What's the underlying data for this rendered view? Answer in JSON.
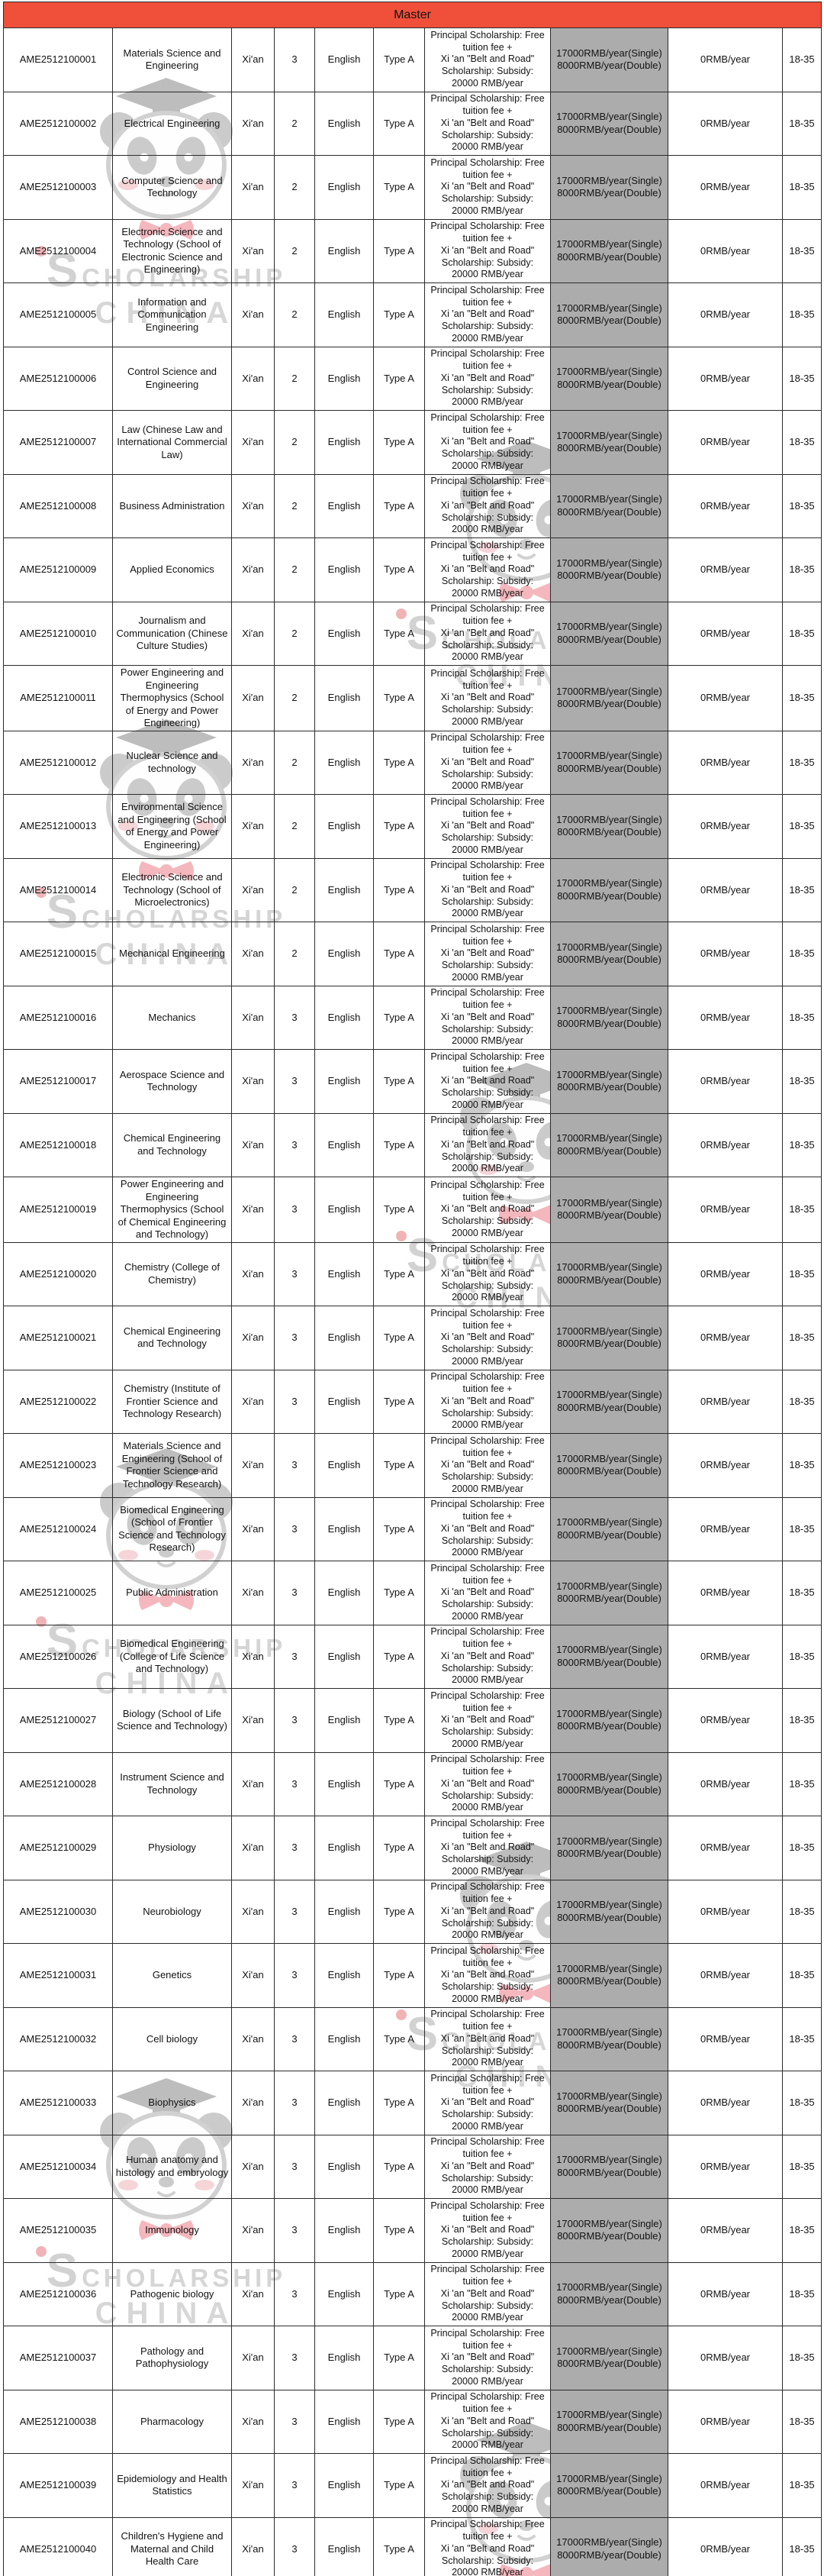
{
  "section": {
    "title": "Master"
  },
  "colors": {
    "header_bg": "#f04f3a",
    "fee_col_bg": "#acacac"
  },
  "watermark": {
    "initial": "S",
    "brand_rest": "CHOLARSHIP",
    "brand_line2": "CHINA"
  },
  "table": {
    "defaults": {
      "city": "Xi'an",
      "language": "English",
      "category": "Type A",
      "scholarship_lines": [
        "Principal Scholarship: Free",
        "tuition fee +",
        "Xi 'an \"Belt and Road\"",
        "Scholarship: Subsidy:",
        "20000 RMB/year"
      ],
      "fee_lines": [
        "17000RMB/year(Single)",
        "8000RMB/year(Double)"
      ],
      "zero_fee": "0RMB/year",
      "age": "18-35"
    },
    "rows": [
      {
        "id": "AME2512100001",
        "program": "Materials Science and Engineering",
        "duration": "3"
      },
      {
        "id": "AME2512100002",
        "program": "Electrical Engineering",
        "duration": "2"
      },
      {
        "id": "AME2512100003",
        "program": "Computer Science and Technology",
        "duration": "2"
      },
      {
        "id": "AME2512100004",
        "program": "Electronic Science and Technology (School of Electronic Science and Engineering)",
        "duration": "2"
      },
      {
        "id": "AME2512100005",
        "program": "Information and Communication Engineering",
        "duration": "2"
      },
      {
        "id": "AME2512100006",
        "program": "Control Science and Engineering",
        "duration": "2"
      },
      {
        "id": "AME2512100007",
        "program": "Law (Chinese Law and International Commercial Law)",
        "duration": "2"
      },
      {
        "id": "AME2512100008",
        "program": "Business Administration",
        "duration": "2"
      },
      {
        "id": "AME2512100009",
        "program": "Applied Economics",
        "duration": "2"
      },
      {
        "id": "AME2512100010",
        "program": "Journalism and Communication (Chinese Culture Studies)",
        "duration": "2"
      },
      {
        "id": "AME2512100011",
        "program": "Power Engineering and Engineering Thermophysics (School of Energy and Power Engineering)",
        "duration": "2"
      },
      {
        "id": "AME2512100012",
        "program": "Nuclear Science and technology",
        "duration": "2"
      },
      {
        "id": "AME2512100013",
        "program": "Environmental Science and Engineering (School of Energy and Power Engineering)",
        "duration": "2"
      },
      {
        "id": "AME2512100014",
        "program": "Electronic Science and Technology (School of Microelectronics)",
        "duration": "2"
      },
      {
        "id": "AME2512100015",
        "program": "Mechanical Engineering",
        "duration": "2"
      },
      {
        "id": "AME2512100016",
        "program": "Mechanics",
        "duration": "3"
      },
      {
        "id": "AME2512100017",
        "program": "Aerospace Science and Technology",
        "duration": "3"
      },
      {
        "id": "AME2512100018",
        "program": "Chemical Engineering and Technology",
        "duration": "3"
      },
      {
        "id": "AME2512100019",
        "program": "Power Engineering and Engineering Thermophysics (School of Chemical Engineering and Technology)",
        "duration": "3"
      },
      {
        "id": "AME2512100020",
        "program": "Chemistry (College of Chemistry)",
        "duration": "3"
      },
      {
        "id": "AME2512100021",
        "program": "Chemical Engineering and Technology",
        "duration": "3"
      },
      {
        "id": "AME2512100022",
        "program": "Chemistry (Institute of Frontier Science and Technology Research)",
        "duration": "3"
      },
      {
        "id": "AME2512100023",
        "program": "Materials Science and Engineering (School of Frontier Science and Technology Research)",
        "duration": "3"
      },
      {
        "id": "AME2512100024",
        "program": "Biomedical Engineering (School of Frontier Science and Technology Research)",
        "duration": "3"
      },
      {
        "id": "AME2512100025",
        "program": "Public Administration",
        "duration": "3"
      },
      {
        "id": "AME2512100026",
        "program": "Biomedical Engineering (College of Life Science and Technology)",
        "duration": "3"
      },
      {
        "id": "AME2512100027",
        "program": "Biology (School of Life Science and Technology)",
        "duration": "3"
      },
      {
        "id": "AME2512100028",
        "program": "Instrument Science and Technology",
        "duration": "3"
      },
      {
        "id": "AME2512100029",
        "program": "Physiology",
        "duration": "3"
      },
      {
        "id": "AME2512100030",
        "program": "Neurobiology",
        "duration": "3"
      },
      {
        "id": "AME2512100031",
        "program": "Genetics",
        "duration": "3"
      },
      {
        "id": "AME2512100032",
        "program": "Cell biology",
        "duration": "3"
      },
      {
        "id": "AME2512100033",
        "program": "Biophysics",
        "duration": "3"
      },
      {
        "id": "AME2512100034",
        "program": "Human anatomy and histology and embryology",
        "duration": "3"
      },
      {
        "id": "AME2512100035",
        "program": "Immunology",
        "duration": "3"
      },
      {
        "id": "AME2512100036",
        "program": "Pathogenic biology",
        "duration": "3"
      },
      {
        "id": "AME2512100037",
        "program": "Pathology and Pathophysiology",
        "duration": "3"
      },
      {
        "id": "AME2512100038",
        "program": "Pharmacology",
        "duration": "3"
      },
      {
        "id": "AME2512100039",
        "program": "Epidemiology and Health Statistics",
        "duration": "3"
      },
      {
        "id": "AME2512100040",
        "program": "Children's Hygiene and Maternal and Child Health Care",
        "duration": "3"
      }
    ]
  }
}
